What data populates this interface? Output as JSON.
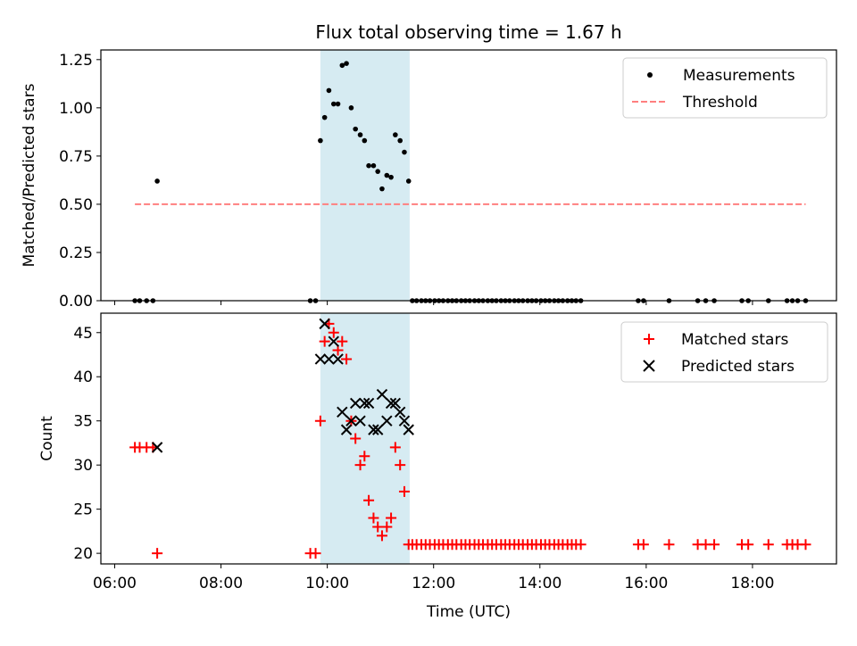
{
  "title": "Flux total observing time = 1.67 h",
  "x_axis": {
    "label": "Time (UTC)",
    "ticks": [
      "06:00",
      "08:00",
      "10:00",
      "12:00",
      "14:00",
      "16:00",
      "18:00"
    ],
    "tick_hours": [
      6,
      8,
      10,
      12,
      14,
      16,
      18
    ],
    "range_hours": [
      5.74,
      19.58
    ]
  },
  "shaded_window_hours": [
    9.87,
    11.55
  ],
  "colors": {
    "shade": "#add8e6",
    "matched": "#ff0000",
    "predicted": "#000000",
    "threshold": "#ff7f7f",
    "measurement": "#000000"
  },
  "chart_data": [
    {
      "type": "scatter",
      "ylabel": "Matched/Predicted stars",
      "ylim": [
        0,
        1.3
      ],
      "yticks": [
        "0.00",
        "0.25",
        "0.50",
        "0.75",
        "1.00",
        "1.25"
      ],
      "ytick_values": [
        0,
        0.25,
        0.5,
        0.75,
        1.0,
        1.25
      ],
      "legend_position": "top-right",
      "legend": {
        "measurements": "Measurements",
        "threshold": "Threshold"
      },
      "threshold": {
        "value": 0.5,
        "x_range": [
          6.38,
          19.0
        ]
      },
      "series": [
        {
          "name": "Measurements",
          "points": [
            [
              6.38,
              0
            ],
            [
              6.47,
              0
            ],
            [
              6.6,
              0
            ],
            [
              6.72,
              0
            ],
            [
              6.8,
              0.62
            ],
            [
              9.68,
              0
            ],
            [
              9.78,
              0
            ],
            [
              9.87,
              0.83
            ],
            [
              9.95,
              0.95
            ],
            [
              10.03,
              1.09
            ],
            [
              10.12,
              1.02
            ],
            [
              10.2,
              1.02
            ],
            [
              10.28,
              1.22
            ],
            [
              10.36,
              1.23
            ],
            [
              10.45,
              1.0
            ],
            [
              10.53,
              0.89
            ],
            [
              10.62,
              0.86
            ],
            [
              10.7,
              0.83
            ],
            [
              10.78,
              0.7
            ],
            [
              10.87,
              0.7
            ],
            [
              10.95,
              0.67
            ],
            [
              11.03,
              0.58
            ],
            [
              11.12,
              0.65
            ],
            [
              11.2,
              0.64
            ],
            [
              11.28,
              0.86
            ],
            [
              11.37,
              0.83
            ],
            [
              11.45,
              0.77
            ],
            [
              11.53,
              0.62
            ],
            [
              11.6,
              0
            ],
            [
              11.68,
              0
            ],
            [
              11.77,
              0
            ],
            [
              11.85,
              0
            ],
            [
              11.93,
              0
            ],
            [
              12.02,
              0
            ],
            [
              12.1,
              0
            ],
            [
              12.18,
              0
            ],
            [
              12.27,
              0
            ],
            [
              12.35,
              0
            ],
            [
              12.43,
              0
            ],
            [
              12.52,
              0
            ],
            [
              12.6,
              0
            ],
            [
              12.68,
              0
            ],
            [
              12.77,
              0
            ],
            [
              12.85,
              0
            ],
            [
              12.93,
              0
            ],
            [
              13.02,
              0
            ],
            [
              13.1,
              0
            ],
            [
              13.18,
              0
            ],
            [
              13.27,
              0
            ],
            [
              13.35,
              0
            ],
            [
              13.43,
              0
            ],
            [
              13.52,
              0
            ],
            [
              13.6,
              0
            ],
            [
              13.68,
              0
            ],
            [
              13.77,
              0
            ],
            [
              13.85,
              0
            ],
            [
              13.93,
              0
            ],
            [
              14.02,
              0
            ],
            [
              14.1,
              0
            ],
            [
              14.18,
              0
            ],
            [
              14.27,
              0
            ],
            [
              14.35,
              0
            ],
            [
              14.43,
              0
            ],
            [
              14.52,
              0
            ],
            [
              14.6,
              0
            ],
            [
              14.68,
              0
            ],
            [
              14.77,
              0
            ],
            [
              15.85,
              0
            ],
            [
              15.95,
              0
            ],
            [
              16.43,
              0
            ],
            [
              16.97,
              0
            ],
            [
              17.12,
              0
            ],
            [
              17.28,
              0
            ],
            [
              17.8,
              0
            ],
            [
              17.92,
              0
            ],
            [
              18.3,
              0
            ],
            [
              18.65,
              0
            ],
            [
              18.75,
              0
            ],
            [
              18.85,
              0
            ],
            [
              19.0,
              0
            ]
          ]
        }
      ]
    },
    {
      "type": "scatter",
      "ylabel": "Count",
      "ylim": [
        18.8,
        47.2
      ],
      "yticks": [
        "20",
        "25",
        "30",
        "35",
        "40",
        "45"
      ],
      "ytick_values": [
        20,
        25,
        30,
        35,
        40,
        45
      ],
      "legend_position": "top-right",
      "legend": {
        "matched": "Matched stars",
        "predicted": "Predicted stars"
      },
      "series": [
        {
          "name": "Matched stars",
          "points": [
            [
              6.38,
              32
            ],
            [
              6.47,
              32
            ],
            [
              6.6,
              32
            ],
            [
              6.72,
              32
            ],
            [
              6.8,
              20
            ],
            [
              9.68,
              20
            ],
            [
              9.78,
              20
            ],
            [
              9.87,
              35
            ],
            [
              9.95,
              44
            ],
            [
              10.03,
              46
            ],
            [
              10.12,
              45
            ],
            [
              10.2,
              43
            ],
            [
              10.28,
              44
            ],
            [
              10.36,
              42
            ],
            [
              10.45,
              35
            ],
            [
              10.53,
              33
            ],
            [
              10.62,
              30
            ],
            [
              10.7,
              31
            ],
            [
              10.78,
              26
            ],
            [
              10.87,
              24
            ],
            [
              10.95,
              23
            ],
            [
              11.03,
              22
            ],
            [
              11.12,
              23
            ],
            [
              11.2,
              24
            ],
            [
              11.28,
              32
            ],
            [
              11.37,
              30
            ],
            [
              11.45,
              27
            ],
            [
              11.53,
              21
            ],
            [
              11.6,
              21
            ],
            [
              11.68,
              21
            ],
            [
              11.77,
              21
            ],
            [
              11.85,
              21
            ],
            [
              11.93,
              21
            ],
            [
              12.02,
              21
            ],
            [
              12.1,
              21
            ],
            [
              12.18,
              21
            ],
            [
              12.27,
              21
            ],
            [
              12.35,
              21
            ],
            [
              12.43,
              21
            ],
            [
              12.52,
              21
            ],
            [
              12.6,
              21
            ],
            [
              12.68,
              21
            ],
            [
              12.77,
              21
            ],
            [
              12.85,
              21
            ],
            [
              12.93,
              21
            ],
            [
              13.02,
              21
            ],
            [
              13.1,
              21
            ],
            [
              13.18,
              21
            ],
            [
              13.27,
              21
            ],
            [
              13.35,
              21
            ],
            [
              13.43,
              21
            ],
            [
              13.52,
              21
            ],
            [
              13.6,
              21
            ],
            [
              13.68,
              21
            ],
            [
              13.77,
              21
            ],
            [
              13.85,
              21
            ],
            [
              13.93,
              21
            ],
            [
              14.02,
              21
            ],
            [
              14.1,
              21
            ],
            [
              14.18,
              21
            ],
            [
              14.27,
              21
            ],
            [
              14.35,
              21
            ],
            [
              14.43,
              21
            ],
            [
              14.52,
              21
            ],
            [
              14.6,
              21
            ],
            [
              14.68,
              21
            ],
            [
              14.77,
              21
            ],
            [
              15.85,
              21
            ],
            [
              15.95,
              21
            ],
            [
              16.43,
              21
            ],
            [
              16.97,
              21
            ],
            [
              17.12,
              21
            ],
            [
              17.28,
              21
            ],
            [
              17.8,
              21
            ],
            [
              17.92,
              21
            ],
            [
              18.3,
              21
            ],
            [
              18.65,
              21
            ],
            [
              18.75,
              21
            ],
            [
              18.85,
              21
            ],
            [
              19.0,
              21
            ]
          ]
        },
        {
          "name": "Predicted stars",
          "points": [
            [
              6.8,
              32
            ],
            [
              9.87,
              42
            ],
            [
              9.95,
              46
            ],
            [
              10.03,
              42
            ],
            [
              10.12,
              44
            ],
            [
              10.2,
              42
            ],
            [
              10.28,
              36
            ],
            [
              10.36,
              34
            ],
            [
              10.45,
              35
            ],
            [
              10.53,
              37
            ],
            [
              10.62,
              35
            ],
            [
              10.7,
              37
            ],
            [
              10.78,
              37
            ],
            [
              10.87,
              34
            ],
            [
              10.95,
              34
            ],
            [
              11.03,
              38
            ],
            [
              11.12,
              35
            ],
            [
              11.2,
              37
            ],
            [
              11.28,
              37
            ],
            [
              11.37,
              36
            ],
            [
              11.45,
              35
            ],
            [
              11.53,
              34
            ]
          ]
        }
      ]
    }
  ]
}
